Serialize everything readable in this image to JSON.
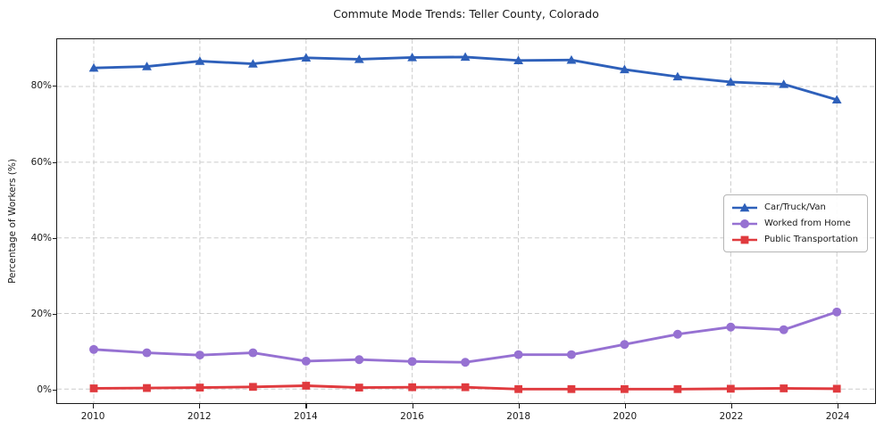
{
  "chart_data": {
    "type": "line",
    "title": "Commute Mode Trends: Teller County, Colorado",
    "xlabel": "",
    "ylabel": "Percentage of Workers (%)",
    "x": [
      2010,
      2011,
      2012,
      2013,
      2014,
      2015,
      2016,
      2017,
      2018,
      2019,
      2020,
      2021,
      2022,
      2023,
      2024
    ],
    "series": [
      {
        "name": "Car/Truck/Van",
        "color": "#2e60ba",
        "marker": "triangle",
        "values": [
          84.9,
          85.3,
          86.7,
          86.0,
          87.6,
          87.2,
          87.7,
          87.8,
          86.9,
          87.0,
          84.5,
          82.6,
          81.2,
          80.6,
          76.5
        ]
      },
      {
        "name": "Worked from Home",
        "color": "#9671d2",
        "marker": "circle",
        "values": [
          10.5,
          9.6,
          9.0,
          9.6,
          7.4,
          7.8,
          7.3,
          7.1,
          9.1,
          9.1,
          11.8,
          14.5,
          16.4,
          15.7,
          20.4
        ]
      },
      {
        "name": "Public Transportation",
        "color": "#e03a3e",
        "marker": "square",
        "values": [
          0.2,
          0.3,
          0.4,
          0.6,
          0.9,
          0.4,
          0.5,
          0.5,
          0.0,
          0.0,
          0.0,
          0.0,
          0.1,
          0.2,
          0.1
        ]
      }
    ],
    "xticks": [
      2010,
      2012,
      2014,
      2016,
      2018,
      2020,
      2022,
      2024
    ],
    "yticks": [
      "0%",
      "20%",
      "40%",
      "60%",
      "80%"
    ],
    "ytick_values": [
      0,
      20,
      40,
      60,
      80
    ],
    "xlim": [
      2009.31,
      2024.72
    ],
    "ylim": [
      -3.7,
      92.5
    ],
    "grid": true,
    "legend_position": "right-center",
    "grid_color": "#cbcbcb",
    "axis_color": "#1a1a1a"
  }
}
